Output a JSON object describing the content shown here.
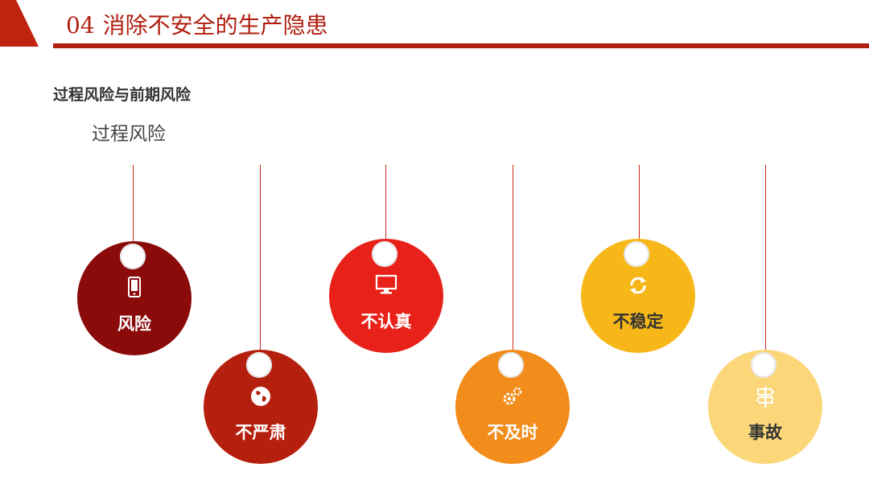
{
  "header": {
    "number": "04",
    "title": "消除不安全的生产隐患",
    "accent_color": "#b01e10"
  },
  "subtitle": "过程风险与前期风险",
  "section_label": "过程风险",
  "tags": [
    {
      "label": "风险",
      "icon": "smartphone-icon",
      "color": "#8b0a0a"
    },
    {
      "label": "不严肃",
      "icon": "globe-icon",
      "color": "#b5200e"
    },
    {
      "label": "不认真",
      "icon": "monitor-icon",
      "color": "#e8221a"
    },
    {
      "label": "不及时",
      "icon": "gears-icon",
      "color": "#f28c1b"
    },
    {
      "label": "不稳定",
      "icon": "refresh-icon",
      "color": "#f7b718"
    },
    {
      "label": "事故",
      "icon": "signpost-icon",
      "color": "#fbd77a"
    }
  ]
}
